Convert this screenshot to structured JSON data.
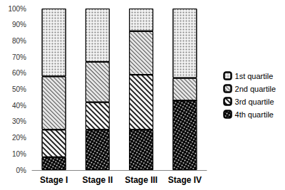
{
  "chart_data": {
    "type": "bar",
    "stacked": true,
    "legend": "right",
    "grid": false,
    "categories": [
      "Stage I",
      "Stage II",
      "Stage III",
      "Stage IV"
    ],
    "ylim": [
      0,
      100
    ],
    "yticks": [
      {
        "value": 0,
        "label": "0%"
      },
      {
        "value": 10,
        "label": "10%"
      },
      {
        "value": 20,
        "label": "20%"
      },
      {
        "value": 30,
        "label": "30%"
      },
      {
        "value": 40,
        "label": "40%"
      },
      {
        "value": 50,
        "label": "50%"
      },
      {
        "value": 60,
        "label": "60%"
      },
      {
        "value": 70,
        "label": "70%"
      },
      {
        "value": 80,
        "label": "80%"
      },
      {
        "value": 90,
        "label": "90%"
      },
      {
        "value": 100,
        "label": "100%"
      }
    ],
    "series": [
      {
        "name": "1st quartile",
        "color": "#f2f2f2",
        "values": [
          42,
          33,
          14,
          43
        ]
      },
      {
        "name": "2nd quartile",
        "color": "#e6e6e6",
        "values": [
          33,
          25,
          27,
          14
        ]
      },
      {
        "name": "3rd quartile",
        "color": "#ffffff",
        "values": [
          17,
          17,
          34,
          0
        ]
      },
      {
        "name": "4th quartile",
        "color": "#000000",
        "values": [
          8,
          25,
          25,
          43
        ]
      }
    ]
  }
}
